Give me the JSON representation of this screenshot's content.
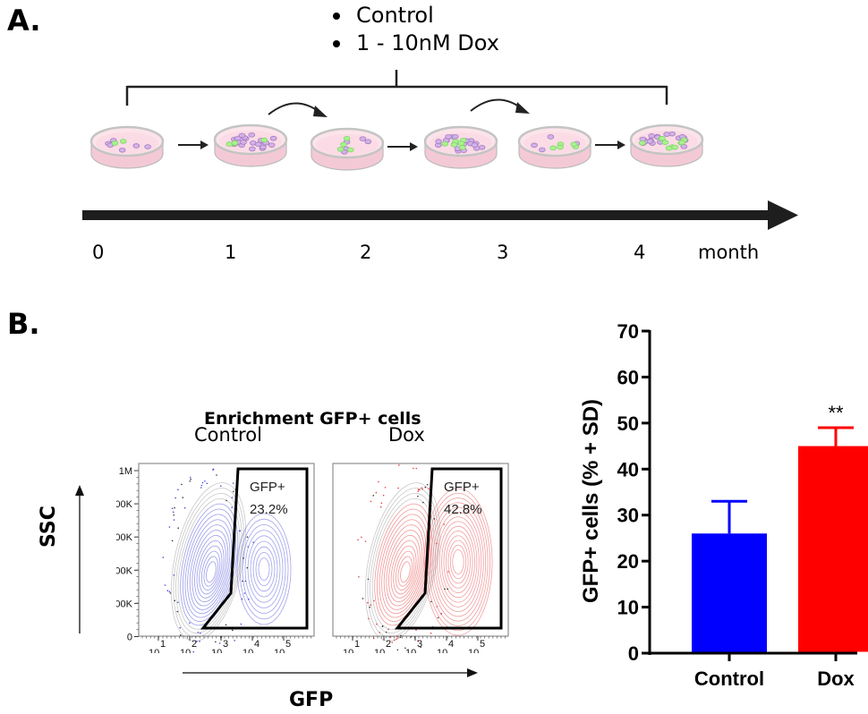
{
  "panel_a": {
    "label": "A.",
    "conditions": [
      "Control",
      "1 - 10nM  Dox"
    ],
    "timeline": {
      "ticks": [
        "0",
        "1",
        "2",
        "3",
        "4"
      ],
      "unit": "month"
    },
    "dishes": [
      {
        "purple": 6,
        "green": 2
      },
      {
        "purple": 22,
        "green": 4
      },
      {
        "purple": 5,
        "green": 4
      },
      {
        "purple": 20,
        "green": 6
      },
      {
        "purple": 4,
        "green": 5
      },
      {
        "purple": 18,
        "green": 10
      }
    ]
  },
  "panel_b": {
    "label": "B.",
    "facs": {
      "title": "Enrichment GFP+ cells",
      "y_axis_label": "SSC",
      "x_axis_label": "GFP",
      "y_ticks": [
        "1M",
        "800K",
        "600K",
        "400K",
        "200K",
        "0"
      ],
      "x_ticks": [
        {
          "base": "10",
          "exp": "1"
        },
        {
          "base": "10",
          "exp": "2"
        },
        {
          "base": "10",
          "exp": "3"
        },
        {
          "base": "10",
          "exp": "4"
        },
        {
          "base": "10",
          "exp": "5"
        }
      ],
      "plots": [
        {
          "condition": "Control",
          "gate_label": "GFP+",
          "gate_value": "23.2%",
          "color": "#4a4ad8"
        },
        {
          "condition": "Dox",
          "gate_label": "GFP+",
          "gate_value": "42.8%",
          "color": "#e84040"
        }
      ]
    }
  },
  "chart_data": {
    "type": "bar",
    "title": "",
    "categories": [
      "Control",
      "Dox"
    ],
    "values": [
      26,
      45
    ],
    "errors": [
      7,
      4
    ],
    "colors": [
      "#0000ff",
      "#ff0000"
    ],
    "annotations": [
      "",
      "**"
    ],
    "xlabel": "",
    "ylabel": "GFP+ cells (% + SD)",
    "ylim": [
      0,
      70
    ],
    "yticks": [
      0,
      10,
      20,
      30,
      40,
      50,
      60,
      70
    ],
    "grid": false
  }
}
